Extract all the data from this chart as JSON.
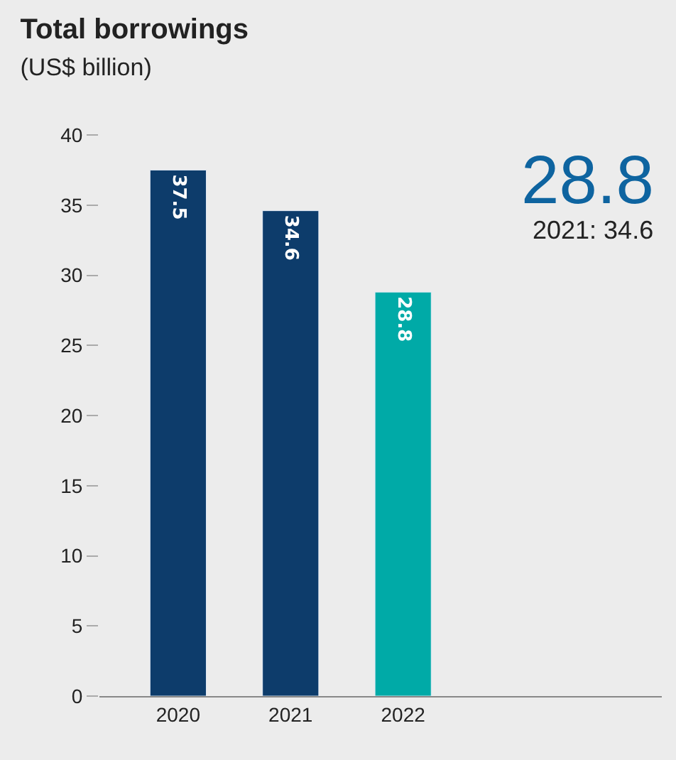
{
  "chart_data": {
    "type": "bar",
    "title": "Total borrowings",
    "subtitle": "(US$ billion)",
    "categories": [
      "2020",
      "2021",
      "2022"
    ],
    "values": [
      37.5,
      34.6,
      28.8
    ],
    "colors": [
      "#0d3c6b",
      "#0d3c6b",
      "#00aaa7"
    ],
    "ylim": [
      0,
      40
    ],
    "yticks": [
      0,
      5,
      10,
      15,
      20,
      25,
      30,
      35,
      40
    ],
    "data_labels": true,
    "annotations": [
      "28.8",
      "2021: 34.6"
    ]
  }
}
